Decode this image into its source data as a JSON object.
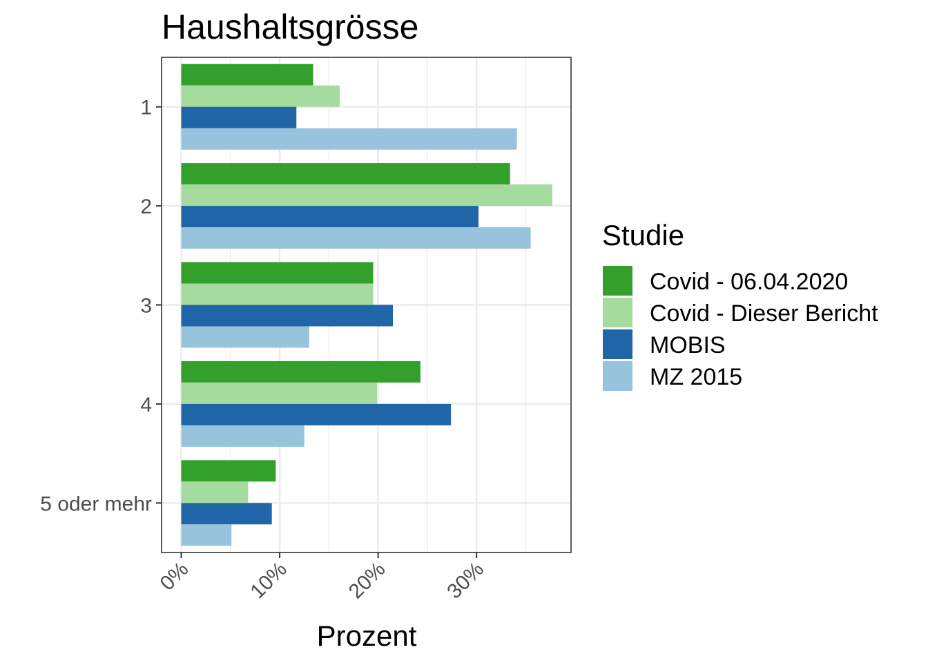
{
  "chart_data": {
    "type": "bar",
    "orientation": "horizontal",
    "title": "Haushaltsgrösse",
    "xlabel": "Prozent",
    "ylabel": "",
    "categories": [
      "1",
      "2",
      "3",
      "4",
      "5 oder mehr"
    ],
    "xlim": [
      -0.02,
      0.396
    ],
    "xticks": [
      0,
      0.1,
      0.2,
      0.3
    ],
    "xtick_labels": [
      "0%",
      "10%",
      "20%",
      "30%"
    ],
    "grid": true,
    "legend": {
      "title": "Studie",
      "position": "right"
    },
    "series": [
      {
        "name": "Covid - 06.04.2020",
        "color": "#33a02c",
        "values": [
          0.134,
          0.334,
          0.195,
          0.243,
          0.096
        ]
      },
      {
        "name": "Covid - Dieser Bericht",
        "color": "#a6dba0",
        "values": [
          0.161,
          0.377,
          0.195,
          0.199,
          0.068
        ]
      },
      {
        "name": "MOBIS",
        "color": "#1f65a8",
        "values": [
          0.117,
          0.302,
          0.215,
          0.274,
          0.092
        ]
      },
      {
        "name": "MZ 2015",
        "color": "#97c3dc",
        "values": [
          0.341,
          0.355,
          0.13,
          0.125,
          0.051
        ]
      }
    ]
  }
}
